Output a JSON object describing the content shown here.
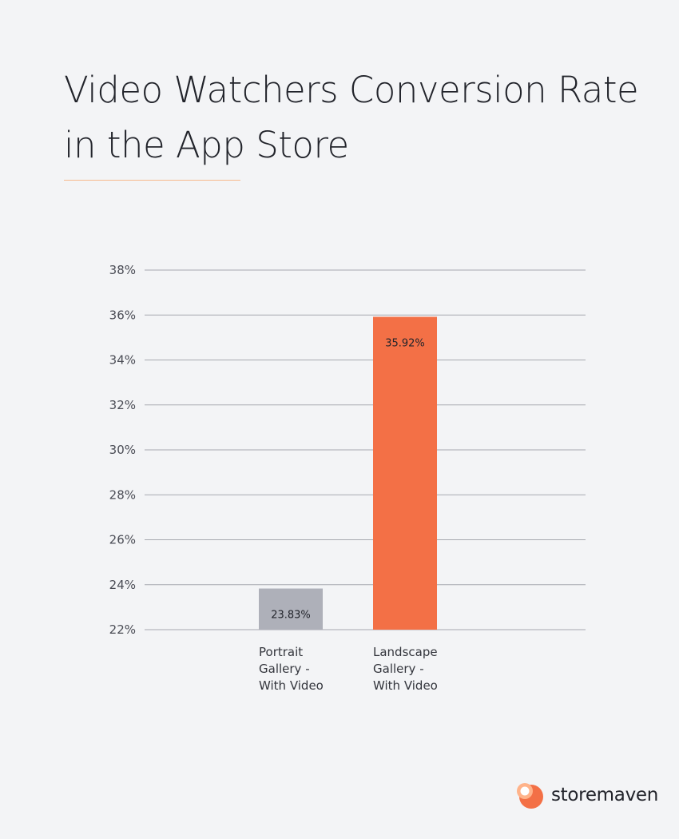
{
  "title": "Video Watchers Conversion Rate in the App Store",
  "brand": {
    "name": "storemaven",
    "icon": "storemaven-logo-icon",
    "colors": [
      "#f37046",
      "#ffb38a",
      "#ffffff"
    ]
  },
  "colors": {
    "background": "#f3f4f6",
    "accent_rule": "#f6b98c",
    "grid": "#a7a9b0"
  },
  "chart_data": {
    "type": "bar",
    "title": "",
    "xlabel": "",
    "ylabel": "",
    "ylim": [
      22,
      38
    ],
    "yticks": [
      22,
      24,
      26,
      28,
      30,
      32,
      34,
      36,
      38
    ],
    "ytick_suffix": "%",
    "grid": true,
    "legend": "none",
    "categories": [
      [
        "Portrait",
        "Gallery -",
        "With Video"
      ],
      [
        "Landscape",
        "Gallery -",
        "With Video"
      ]
    ],
    "values": [
      23.83,
      35.92
    ],
    "data_labels": [
      "23.83%",
      "35.92%"
    ],
    "bar_colors": [
      "#aeb0b9",
      "#f37046"
    ]
  }
}
